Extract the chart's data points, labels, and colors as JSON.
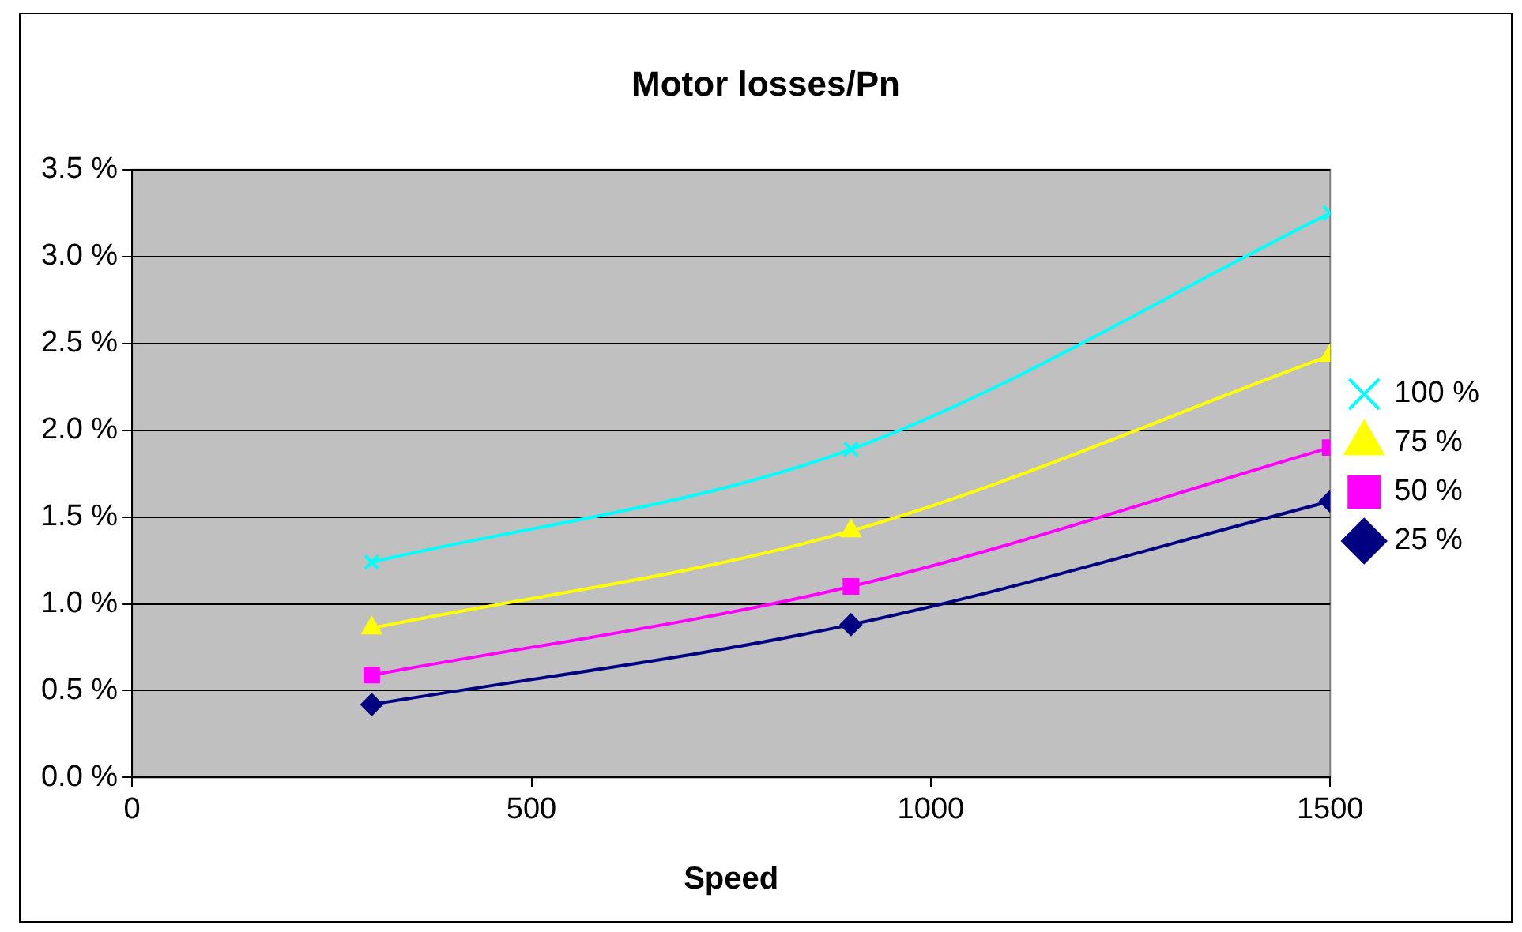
{
  "chart_data": {
    "type": "line",
    "title": "Motor losses/Pn",
    "xlabel": "Speed",
    "x": [
      300,
      900,
      1500
    ],
    "series": [
      {
        "name": "100 %",
        "color": "#00ffff",
        "marker": "cross",
        "values": [
          1.24,
          1.89,
          3.25
        ]
      },
      {
        "name": "75 %",
        "color": "#ffff00",
        "marker": "triangle",
        "values": [
          0.86,
          1.42,
          2.43
        ]
      },
      {
        "name": "50 %",
        "color": "#ff00ff",
        "marker": "square",
        "values": [
          0.59,
          1.1,
          1.9
        ]
      },
      {
        "name": "25 %",
        "color": "#000080",
        "marker": "diamond",
        "values": [
          0.42,
          0.88,
          1.59
        ]
      }
    ],
    "xlim": [
      0,
      1500
    ],
    "xticks": [
      0,
      500,
      1000,
      1500
    ],
    "ylim": [
      0,
      3.5
    ],
    "yticks": [
      {
        "value": 0,
        "label": "0.0 %"
      },
      {
        "value": 0.5,
        "label": "0.5 %"
      },
      {
        "value": 1,
        "label": "1.0 %"
      },
      {
        "value": 1.5,
        "label": "1.5 %"
      },
      {
        "value": 2,
        "label": "2.0 %"
      },
      {
        "value": 2.5,
        "label": "2.5 %"
      },
      {
        "value": 3,
        "label": "3.0 %"
      },
      {
        "value": 3.5,
        "label": "3.5 %"
      }
    ],
    "grid": "y",
    "legend": "right"
  }
}
